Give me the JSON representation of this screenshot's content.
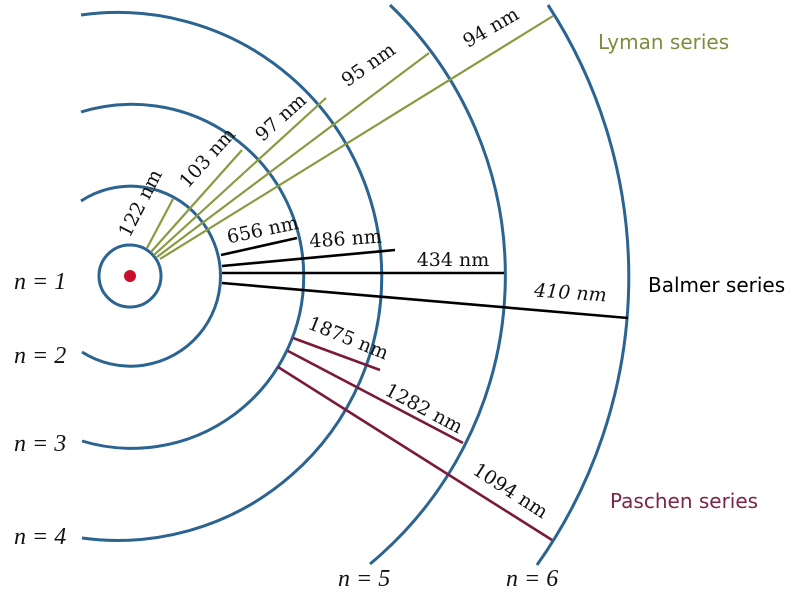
{
  "colors": {
    "orbit": "#2b6490",
    "nucleus": "#c8102e",
    "lyman": "#8a9a40",
    "balmer": "#000000",
    "paschen": "#7a1a3a",
    "lyman_label": "#7f8c3e",
    "paschen_label": "#7d2346"
  },
  "orbits": [
    {
      "label": "n = 1"
    },
    {
      "label": "n = 2"
    },
    {
      "label": "n = 3"
    },
    {
      "label": "n = 4"
    },
    {
      "label": "n = 5"
    },
    {
      "label": "n = 6"
    }
  ],
  "series": [
    {
      "name": "Lyman series",
      "lower_level": 1,
      "transitions": [
        {
          "from": 2,
          "wavelength": "122 nm"
        },
        {
          "from": 3,
          "wavelength": "103 nm"
        },
        {
          "from": 4,
          "wavelength": "97 nm"
        },
        {
          "from": 5,
          "wavelength": "95 nm"
        },
        {
          "from": 6,
          "wavelength": "94 nm"
        }
      ]
    },
    {
      "name": "Balmer series",
      "lower_level": 2,
      "transitions": [
        {
          "from": 3,
          "wavelength": "656 nm"
        },
        {
          "from": 4,
          "wavelength": "486 nm"
        },
        {
          "from": 5,
          "wavelength": "434 nm"
        },
        {
          "from": 6,
          "wavelength": "410 nm"
        }
      ]
    },
    {
      "name": "Paschen series",
      "lower_level": 3,
      "transitions": [
        {
          "from": 4,
          "wavelength": "1875 nm"
        },
        {
          "from": 5,
          "wavelength": "1282 nm"
        },
        {
          "from": 6,
          "wavelength": "1094 nm"
        }
      ]
    }
  ]
}
